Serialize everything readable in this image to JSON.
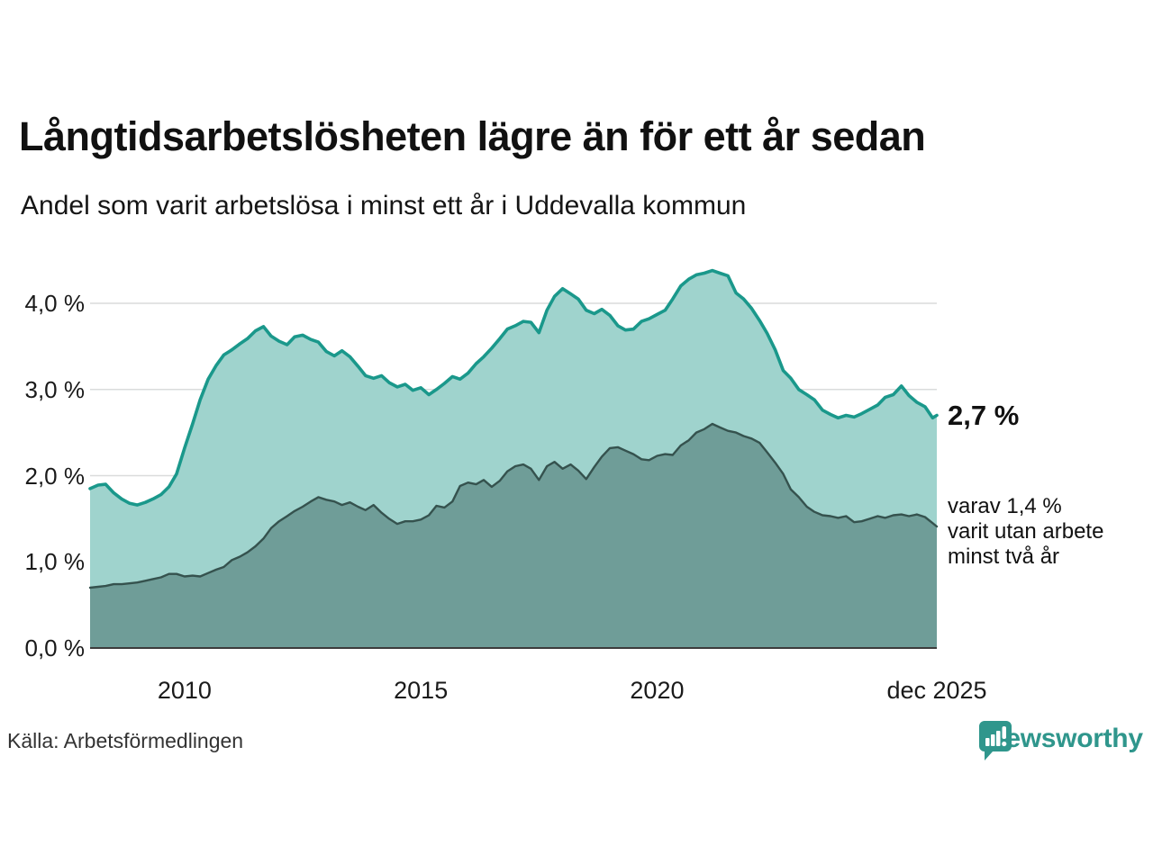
{
  "header": {
    "title": "Långtidsarbetslösheten lägre än för ett år sedan",
    "subtitle": "Andel som varit arbetslösa i minst ett år i Uddevalla kommun"
  },
  "chart_data": {
    "type": "area",
    "title": "Långtidsarbetslösheten lägre än för ett år sedan",
    "subtitle": "Andel som varit arbetslösa i minst ett år i Uddevalla kommun",
    "x_unit": "decimal_year",
    "xlim": [
      2008.0,
      2025.92
    ],
    "ylim": [
      0,
      4.5
    ],
    "grid": true,
    "yticks": {
      "values": [
        0,
        1,
        2,
        3,
        4
      ],
      "labels": [
        "0,0 %",
        "1,0 %",
        "2,0 %",
        "3,0 %",
        "4,0 %"
      ]
    },
    "xticks": [
      {
        "value": 2010,
        "label": "2010"
      },
      {
        "value": 2015,
        "label": "2015"
      },
      {
        "value": 2020,
        "label": "2020"
      },
      {
        "value": 2025.92,
        "label": "dec 2025"
      }
    ],
    "x": [
      2008.0,
      2008.17,
      2008.33,
      2008.5,
      2008.67,
      2008.83,
      2009.0,
      2009.17,
      2009.33,
      2009.5,
      2009.67,
      2009.83,
      2010.0,
      2010.17,
      2010.33,
      2010.5,
      2010.67,
      2010.83,
      2011.0,
      2011.17,
      2011.33,
      2011.5,
      2011.67,
      2011.83,
      2012.0,
      2012.17,
      2012.33,
      2012.5,
      2012.67,
      2012.83,
      2013.0,
      2013.17,
      2013.33,
      2013.5,
      2013.67,
      2013.83,
      2014.0,
      2014.17,
      2014.33,
      2014.5,
      2014.67,
      2014.83,
      2015.0,
      2015.17,
      2015.33,
      2015.5,
      2015.67,
      2015.83,
      2016.0,
      2016.17,
      2016.33,
      2016.5,
      2016.67,
      2016.83,
      2017.0,
      2017.17,
      2017.33,
      2017.5,
      2017.67,
      2017.83,
      2018.0,
      2018.17,
      2018.33,
      2018.5,
      2018.67,
      2018.83,
      2019.0,
      2019.17,
      2019.33,
      2019.5,
      2019.67,
      2019.83,
      2020.0,
      2020.17,
      2020.33,
      2020.5,
      2020.67,
      2020.83,
      2021.0,
      2021.17,
      2021.33,
      2021.5,
      2021.67,
      2021.83,
      2022.0,
      2022.17,
      2022.33,
      2022.5,
      2022.67,
      2022.83,
      2023.0,
      2023.17,
      2023.33,
      2023.5,
      2023.67,
      2023.83,
      2024.0,
      2024.17,
      2024.33,
      2024.5,
      2024.67,
      2024.83,
      2025.0,
      2025.17,
      2025.33,
      2025.5,
      2025.67,
      2025.83,
      2025.92
    ],
    "series": [
      {
        "name": "Andel som varit arbetslösa i minst ett år",
        "line_color": "#1a988b",
        "fill_color": "#9fd3cd",
        "line_width": 3.6,
        "values": [
          1.85,
          1.89,
          1.9,
          1.8,
          1.73,
          1.68,
          1.66,
          1.69,
          1.73,
          1.78,
          1.87,
          2.02,
          2.32,
          2.6,
          2.88,
          3.12,
          3.28,
          3.4,
          3.46,
          3.53,
          3.59,
          3.68,
          3.73,
          3.62,
          3.56,
          3.52,
          3.61,
          3.63,
          3.58,
          3.55,
          3.44,
          3.39,
          3.45,
          3.38,
          3.27,
          3.16,
          3.13,
          3.16,
          3.08,
          3.03,
          3.06,
          2.99,
          3.02,
          2.94,
          3.0,
          3.07,
          3.15,
          3.12,
          3.19,
          3.3,
          3.38,
          3.48,
          3.59,
          3.7,
          3.74,
          3.79,
          3.78,
          3.66,
          3.92,
          4.08,
          4.17,
          4.11,
          4.05,
          3.92,
          3.88,
          3.93,
          3.86,
          3.74,
          3.69,
          3.7,
          3.79,
          3.82,
          3.87,
          3.92,
          4.05,
          4.2,
          4.28,
          4.33,
          4.35,
          4.38,
          4.35,
          4.32,
          4.12,
          4.05,
          3.94,
          3.8,
          3.65,
          3.46,
          3.22,
          3.13,
          3.0,
          2.94,
          2.88,
          2.76,
          2.71,
          2.67,
          2.7,
          2.68,
          2.72,
          2.77,
          2.82,
          2.91,
          2.94,
          3.04,
          2.93,
          2.85,
          2.8,
          2.67,
          2.7
        ]
      },
      {
        "name": "varav utan arbete minst två år",
        "line_color": "#35524e",
        "fill_color": "#6f9d98",
        "line_width": 2.4,
        "values": [
          0.7,
          0.71,
          0.72,
          0.74,
          0.74,
          0.75,
          0.76,
          0.78,
          0.8,
          0.82,
          0.86,
          0.86,
          0.83,
          0.84,
          0.83,
          0.87,
          0.91,
          0.94,
          1.02,
          1.06,
          1.11,
          1.18,
          1.27,
          1.39,
          1.47,
          1.53,
          1.59,
          1.64,
          1.7,
          1.75,
          1.72,
          1.7,
          1.66,
          1.69,
          1.64,
          1.6,
          1.66,
          1.57,
          1.5,
          1.44,
          1.47,
          1.47,
          1.49,
          1.54,
          1.65,
          1.63,
          1.7,
          1.88,
          1.92,
          1.9,
          1.95,
          1.87,
          1.94,
          2.05,
          2.11,
          2.13,
          2.08,
          1.95,
          2.11,
          2.16,
          2.08,
          2.13,
          2.06,
          1.96,
          2.1,
          2.22,
          2.32,
          2.33,
          2.29,
          2.25,
          2.19,
          2.18,
          2.23,
          2.25,
          2.24,
          2.35,
          2.41,
          2.5,
          2.54,
          2.6,
          2.56,
          2.52,
          2.5,
          2.46,
          2.43,
          2.38,
          2.27,
          2.15,
          2.02,
          1.84,
          1.75,
          1.64,
          1.58,
          1.54,
          1.53,
          1.51,
          1.53,
          1.46,
          1.47,
          1.5,
          1.53,
          1.51,
          1.54,
          1.55,
          1.53,
          1.55,
          1.52,
          1.45,
          1.41
        ]
      }
    ],
    "annotations": {
      "end_value_label": "2,7 %",
      "secondary_label": "varav 1,4 %\nvarit utan arbete\nminst två år"
    },
    "colors": {
      "gridline": "#dadcdc",
      "axis_line": "#3c3c3c"
    }
  },
  "footer": {
    "source": "Källa: Arbetsförmedlingen",
    "brand": "Newsworthy",
    "brand_color": "#2f968c"
  }
}
